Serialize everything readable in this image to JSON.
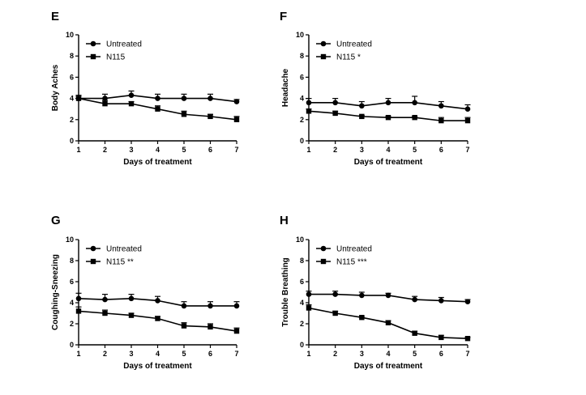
{
  "chart_data": [
    {
      "panel": "E",
      "type": "line",
      "ylabel": "Body Aches",
      "xlabel": "Days of treatment",
      "x": [
        1,
        2,
        3,
        4,
        5,
        6,
        7
      ],
      "xlim": [
        1,
        7
      ],
      "ylim": [
        0,
        10
      ],
      "yticks": [
        0,
        2,
        4,
        6,
        8,
        10
      ],
      "legend_position": "top-left",
      "series": [
        {
          "name": "Untreated",
          "marker": "circle",
          "values": [
            4.0,
            4.0,
            4.3,
            4.0,
            4.0,
            4.0,
            3.7
          ],
          "error": [
            0.3,
            0.4,
            0.4,
            0.4,
            0.4,
            0.4,
            0.2
          ]
        },
        {
          "name": "N115",
          "marker": "square",
          "values": [
            4.0,
            3.5,
            3.5,
            3.0,
            2.5,
            2.3,
            2.0
          ],
          "error": [
            0.2,
            0.3,
            0.2,
            0.3,
            0.3,
            0.2,
            0.3
          ]
        }
      ]
    },
    {
      "panel": "F",
      "type": "line",
      "ylabel": "Headache",
      "xlabel": "Days of treatment",
      "x": [
        1,
        2,
        3,
        4,
        5,
        6,
        7
      ],
      "xlim": [
        1,
        7
      ],
      "ylim": [
        0,
        10
      ],
      "yticks": [
        0,
        2,
        4,
        6,
        8,
        10
      ],
      "legend_position": "top-left",
      "series": [
        {
          "name": "Untreated",
          "marker": "circle",
          "values": [
            3.6,
            3.6,
            3.3,
            3.6,
            3.6,
            3.3,
            3.0
          ],
          "error": [
            0.4,
            0.4,
            0.4,
            0.4,
            0.6,
            0.4,
            0.4
          ]
        },
        {
          "name": "N115 *",
          "marker": "square",
          "values": [
            2.8,
            2.6,
            2.3,
            2.2,
            2.2,
            1.9,
            1.9
          ],
          "error": [
            0.2,
            0.2,
            0.1,
            0.1,
            0.1,
            0.3,
            0.3
          ]
        }
      ]
    },
    {
      "panel": "G",
      "type": "line",
      "ylabel": "Coughing-Sneezing",
      "xlabel": "Days of treatment",
      "x": [
        1,
        2,
        3,
        4,
        5,
        6,
        7
      ],
      "xlim": [
        1,
        7
      ],
      "ylim": [
        0,
        10
      ],
      "yticks": [
        0,
        2,
        4,
        6,
        8,
        10
      ],
      "legend_position": "top-left",
      "series": [
        {
          "name": "Untreated",
          "marker": "circle",
          "values": [
            4.4,
            4.3,
            4.4,
            4.2,
            3.7,
            3.7,
            3.7
          ],
          "error": [
            0.5,
            0.5,
            0.4,
            0.4,
            0.4,
            0.4,
            0.4
          ]
        },
        {
          "name": "N115 **",
          "marker": "square",
          "values": [
            3.2,
            3.0,
            2.8,
            2.5,
            1.8,
            1.7,
            1.3
          ],
          "error": [
            0.4,
            0.3,
            0.2,
            0.2,
            0.3,
            0.3,
            0.3
          ]
        }
      ]
    },
    {
      "panel": "H",
      "type": "line",
      "ylabel": "Trouble Breathing",
      "xlabel": "Days of treatment",
      "x": [
        1,
        2,
        3,
        4,
        5,
        6,
        7
      ],
      "xlim": [
        1,
        7
      ],
      "ylim": [
        0,
        10
      ],
      "yticks": [
        0,
        2,
        4,
        6,
        8,
        10
      ],
      "legend_position": "top-left",
      "series": [
        {
          "name": "Untreated",
          "marker": "circle",
          "values": [
            4.8,
            4.8,
            4.7,
            4.7,
            4.3,
            4.2,
            4.1
          ],
          "error": [
            0.3,
            0.3,
            0.3,
            0.2,
            0.3,
            0.3,
            0.2
          ]
        },
        {
          "name": "N115 ***",
          "marker": "square",
          "values": [
            3.5,
            3.0,
            2.6,
            2.1,
            1.1,
            0.7,
            0.6
          ],
          "error": [
            0.3,
            0.2,
            0.1,
            0.2,
            0.2,
            0.2,
            0.1
          ]
        }
      ]
    }
  ]
}
